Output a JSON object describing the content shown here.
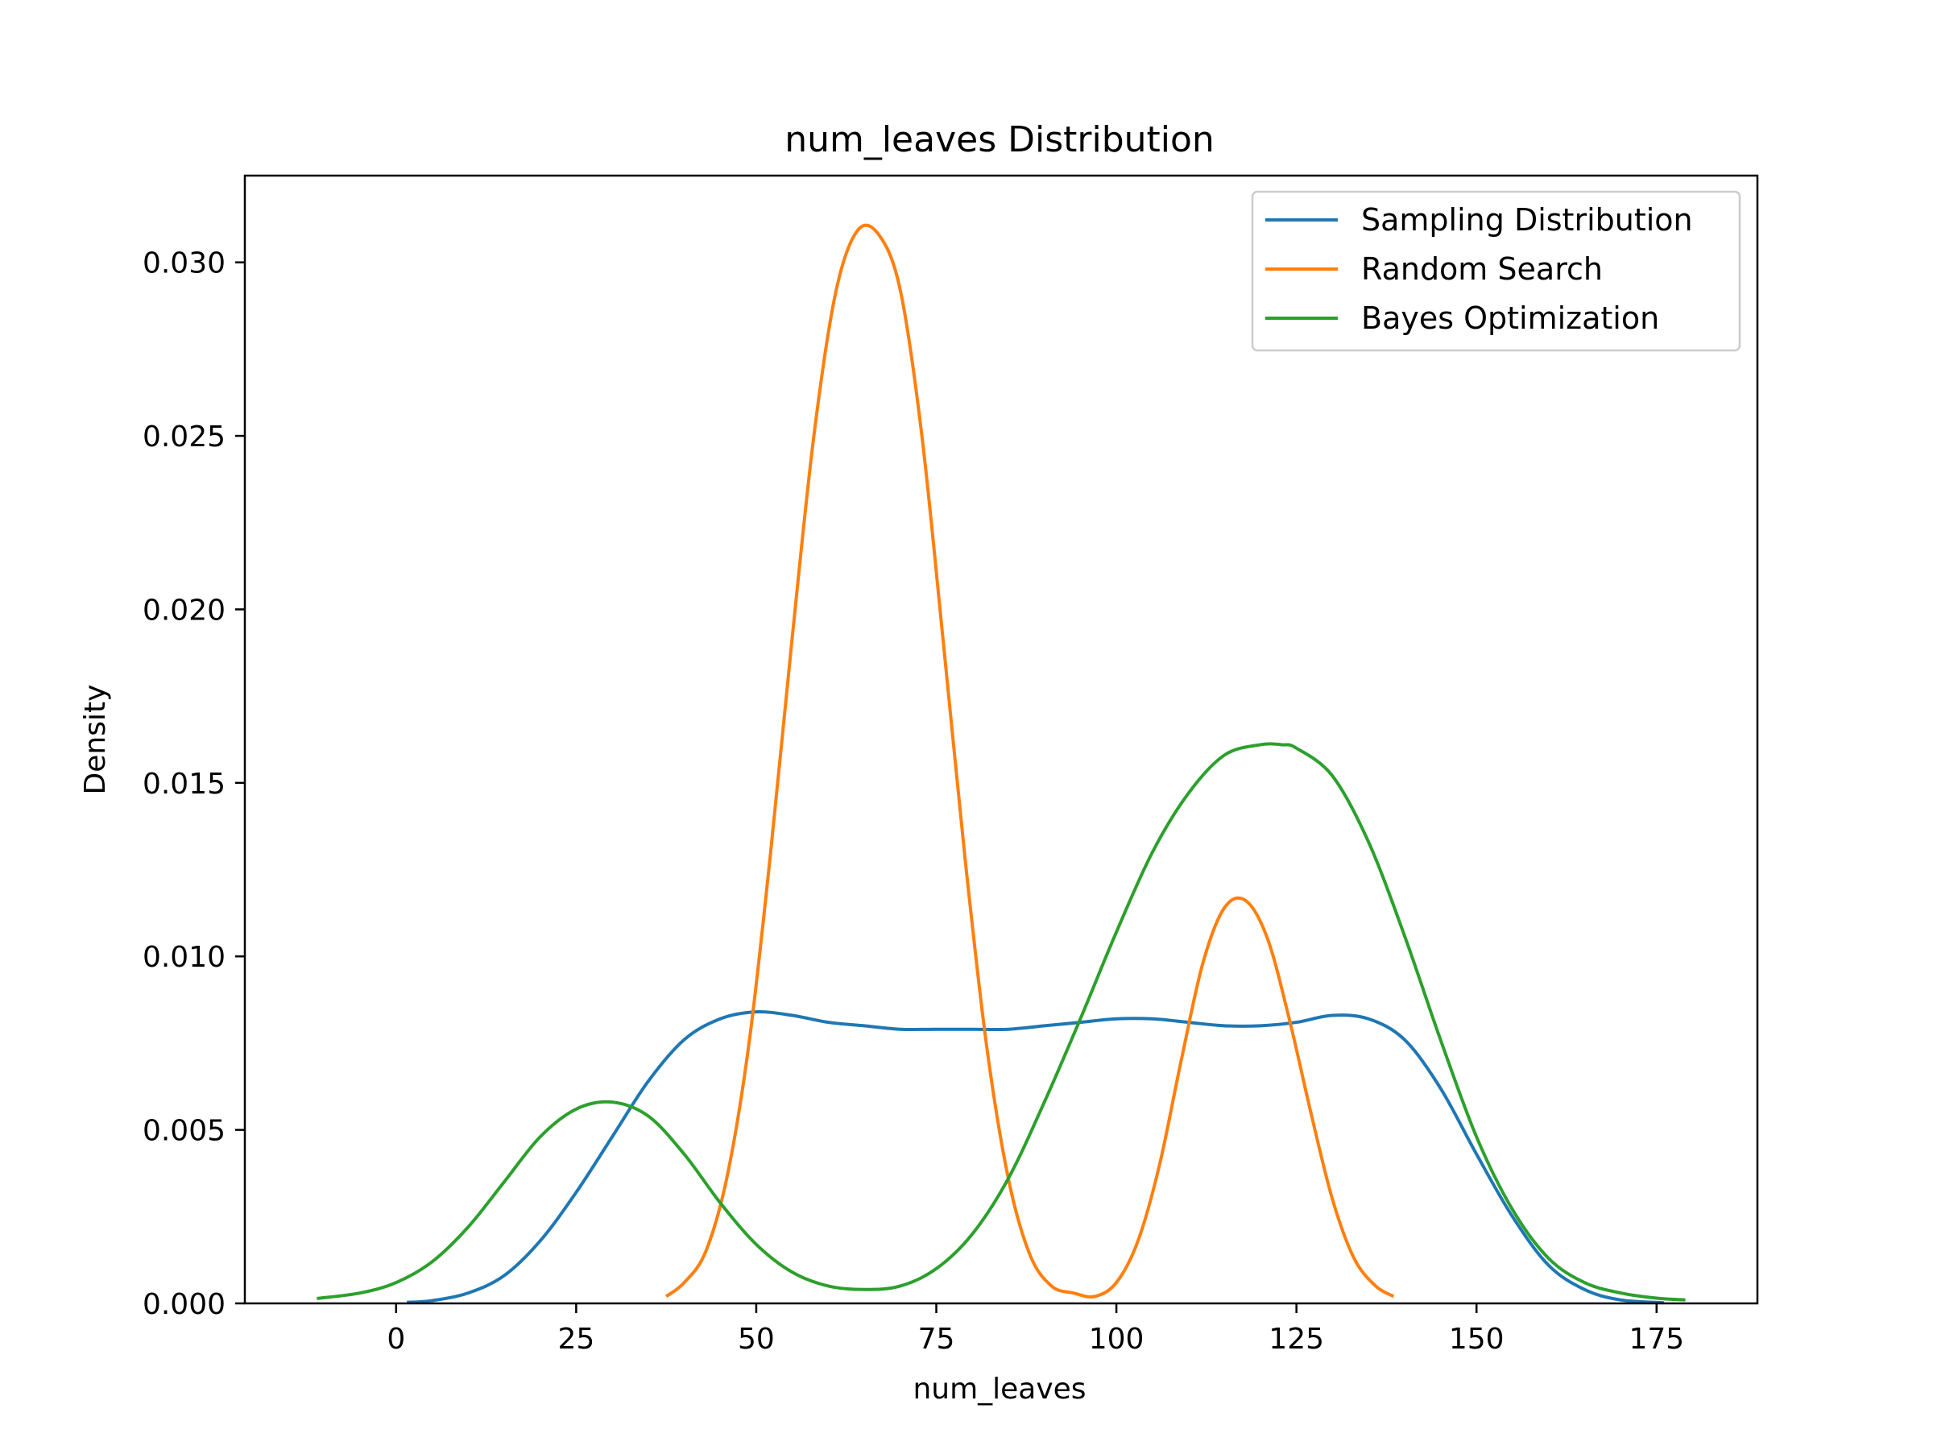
{
  "chart_data": {
    "type": "line",
    "title": "num_leaves Distribution",
    "xlabel": "num_leaves",
    "ylabel": "Density",
    "xlim": [
      -21,
      189
    ],
    "ylim": [
      0,
      0.0325
    ],
    "xticks": [
      0,
      25,
      50,
      75,
      100,
      125,
      150,
      175
    ],
    "xtick_labels": [
      "0",
      "25",
      "50",
      "75",
      "100",
      "125",
      "150",
      "175"
    ],
    "yticks": [
      0,
      0.005,
      0.01,
      0.015,
      0.02,
      0.025,
      0.03
    ],
    "ytick_labels": [
      "0.000",
      "0.005",
      "0.010",
      "0.015",
      "0.020",
      "0.025",
      "0.030"
    ],
    "grid": false,
    "legend_position": "top-right",
    "series": [
      {
        "name": "Sampling Distribution",
        "color": "#1f77b4",
        "x": [
          1.5,
          5,
          10,
          15,
          20,
          25,
          30,
          35,
          40,
          45,
          50,
          55,
          60,
          65,
          70,
          75,
          80,
          85,
          90,
          95,
          100,
          105,
          110,
          115,
          120,
          125,
          130,
          135,
          140,
          145,
          150,
          155,
          160,
          165,
          170,
          176
        ],
        "y": [
          3e-05,
          8e-05,
          0.0003,
          0.0008,
          0.0018,
          0.0032,
          0.0048,
          0.0064,
          0.0076,
          0.0082,
          0.0084,
          0.0083,
          0.0081,
          0.008,
          0.0079,
          0.0079,
          0.0079,
          0.0079,
          0.008,
          0.0081,
          0.0082,
          0.0082,
          0.0081,
          0.008,
          0.008,
          0.0081,
          0.0083,
          0.0082,
          0.0076,
          0.0062,
          0.0043,
          0.0025,
          0.0011,
          0.0004,
          0.0001,
          2e-05
        ]
      },
      {
        "name": "Random Search",
        "color": "#ff7f0e",
        "x": [
          37.5,
          40,
          43,
          46,
          49,
          52,
          55,
          58,
          61,
          64,
          67,
          70,
          73,
          76,
          79,
          82,
          85,
          88,
          91,
          94,
          97,
          100,
          103,
          106,
          109,
          112,
          115,
          118,
          121,
          124,
          127,
          130,
          133,
          136,
          138.5
        ],
        "y": [
          0.0002,
          0.0006,
          0.0015,
          0.0037,
          0.0075,
          0.013,
          0.0192,
          0.025,
          0.0291,
          0.0309,
          0.0308,
          0.0292,
          0.025,
          0.019,
          0.0128,
          0.0074,
          0.0036,
          0.0014,
          0.0005,
          0.0003,
          0.0002,
          0.0006,
          0.0018,
          0.004,
          0.007,
          0.0098,
          0.0114,
          0.0116,
          0.0105,
          0.0082,
          0.0055,
          0.003,
          0.0013,
          0.0005,
          0.0002
        ]
      },
      {
        "name": "Bayes Optimization",
        "color": "#2ca02c",
        "x": [
          -11,
          -5,
          0,
          5,
          10,
          15,
          20,
          25,
          30,
          35,
          40,
          45,
          50,
          55,
          60,
          65,
          70,
          75,
          80,
          85,
          90,
          95,
          100,
          105,
          110,
          115,
          120,
          123,
          125,
          130,
          135,
          140,
          145,
          150,
          155,
          160,
          165,
          170,
          175,
          179
        ],
        "y": [
          0.00014,
          0.0003,
          0.0006,
          0.0012,
          0.0022,
          0.0035,
          0.0048,
          0.0056,
          0.0058,
          0.0054,
          0.0043,
          0.0029,
          0.0017,
          0.0009,
          0.0005,
          0.0004,
          0.0005,
          0.001,
          0.002,
          0.0036,
          0.0058,
          0.0082,
          0.0107,
          0.013,
          0.0147,
          0.0158,
          0.0161,
          0.0161,
          0.016,
          0.0152,
          0.0133,
          0.0106,
          0.0076,
          0.0048,
          0.0027,
          0.0013,
          0.0006,
          0.0003,
          0.00015,
          0.0001
        ]
      }
    ]
  }
}
